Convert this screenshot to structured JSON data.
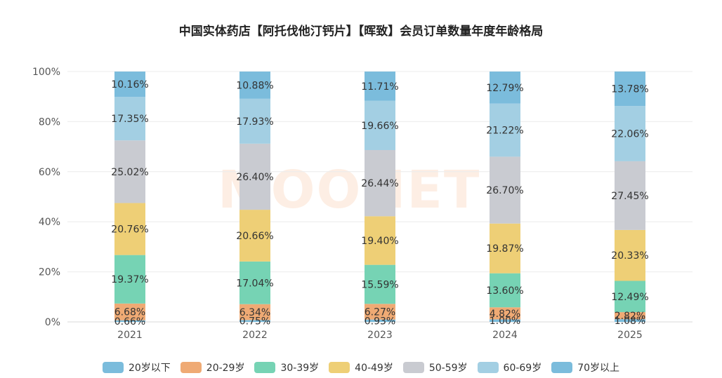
{
  "chart_data": {
    "type": "bar",
    "stacked": true,
    "title": "中国实体药店【阿托伐他汀钙片】【晖致】会员订单数量年度年龄格局",
    "categories": [
      "2021",
      "2022",
      "2023",
      "2024",
      "2025"
    ],
    "ylim": [
      0,
      100
    ],
    "yticks": [
      "0%",
      "20%",
      "40%",
      "60%",
      "80%",
      "100%"
    ],
    "grid": true,
    "legend_position": "bottom",
    "series": [
      {
        "name": "20岁以下",
        "color": "#7bbcdc",
        "values": [
          0.66,
          0.75,
          0.93,
          1.0,
          1.08
        ],
        "labels": [
          "0.66%",
          "0.75%",
          "0.93%",
          "1.00%",
          "1.08%"
        ]
      },
      {
        "name": "20-29岁",
        "color": "#efaa74",
        "values": [
          6.68,
          6.34,
          6.27,
          4.82,
          2.82
        ],
        "labels": [
          "6.68%",
          "6.34%",
          "6.27%",
          "4.82%",
          "2.82%"
        ]
      },
      {
        "name": "30-39岁",
        "color": "#76d3b4",
        "values": [
          19.37,
          17.04,
          15.59,
          13.6,
          12.49
        ],
        "labels": [
          "19.37%",
          "17.04%",
          "15.59%",
          "13.60%",
          "12.49%"
        ]
      },
      {
        "name": "40-49岁",
        "color": "#eecf76",
        "values": [
          20.76,
          20.66,
          19.4,
          19.87,
          20.33
        ],
        "labels": [
          "20.76%",
          "20.66%",
          "19.40%",
          "19.87%",
          "20.33%"
        ]
      },
      {
        "name": "50-59岁",
        "color": "#c9cbd1",
        "values": [
          25.02,
          26.4,
          26.44,
          26.7,
          27.45
        ],
        "labels": [
          "25.02%",
          "26.40%",
          "26.44%",
          "26.70%",
          "27.45%"
        ]
      },
      {
        "name": "60-69岁",
        "color": "#a3cfe3",
        "values": [
          17.35,
          17.93,
          19.66,
          21.22,
          22.06
        ],
        "labels": [
          "17.35%",
          "17.93%",
          "19.66%",
          "21.22%",
          "22.06%"
        ]
      },
      {
        "name": "70岁以上",
        "color": "#7bbcdc",
        "values": [
          10.16,
          10.88,
          11.71,
          12.79,
          13.78
        ],
        "labels": [
          "10.16%",
          "10.88%",
          "11.71%",
          "12.79%",
          "13.78%"
        ]
      }
    ]
  },
  "watermark": {
    "text": "MOONET",
    "color": "#fdeee4"
  }
}
